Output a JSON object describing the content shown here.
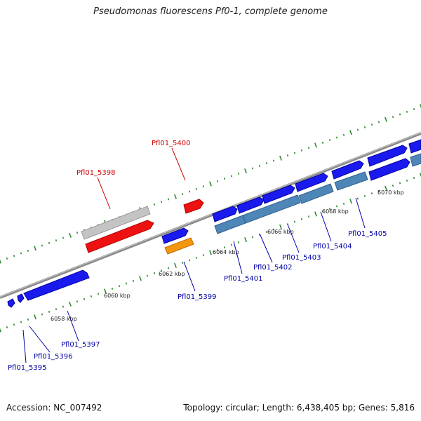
{
  "title": "Pseudomonas fluorescens Pf0-1, complete genome",
  "footer": {
    "accession": "Accession: NC_007492",
    "info": "Topology: circular; Length: 6,438,405 bp; Genes: 5,816"
  },
  "colors": {
    "backbone": "#8a8a8a",
    "tick": "#2e8b2e",
    "gene_blue": "#1a1aee",
    "gene_steel": "#4f86b8",
    "gene_red": "#ee1111",
    "gene_gray": "#c4c4c4",
    "gene_orange": "#f5960f",
    "label_red": "#cc0000",
    "label_blue": "#0000aa"
  },
  "kbp_labels": [
    "6058 kbp",
    "6060 kbp",
    "6062 kbp",
    "6064 kbp",
    "6066 kbp",
    "6068 kbp",
    "6070 kbp"
  ],
  "gene_labels": {
    "red": [
      "Pfl01_5398",
      "Pfl01_5400"
    ],
    "blue": [
      "Pfl01_5395",
      "Pfl01_5396",
      "Pfl01_5397",
      "Pfl01_5399",
      "Pfl01_5401",
      "Pfl01_5402",
      "Pfl01_5403",
      "Pfl01_5404",
      "Pfl01_5405"
    ]
  }
}
